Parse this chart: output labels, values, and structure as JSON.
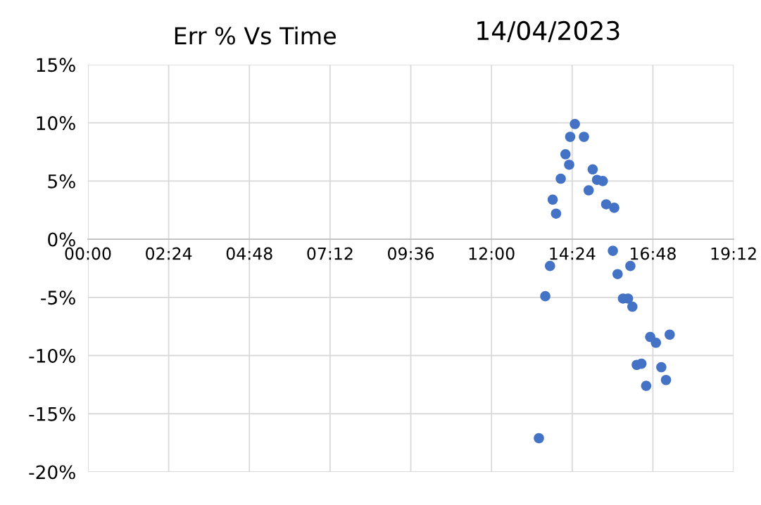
{
  "chart_data": {
    "type": "scatter",
    "title": "Err % Vs Time",
    "annotations": [
      "14/04/2023"
    ],
    "x": [
      14.48,
      14.34,
      14.75,
      14.2,
      14.31,
      14.06,
      15.01,
      15.14,
      15.31,
      14.89,
      13.82,
      13.92,
      15.41,
      15.65,
      15.61,
      13.74,
      16.13,
      15.75,
      13.6,
      15.91,
      16.06,
      16.19,
      16.72,
      16.89,
      17.3,
      16.32,
      16.46,
      17.05,
      17.19,
      16.6,
      13.41
    ],
    "values": [
      9.9,
      8.8,
      8.8,
      7.3,
      6.4,
      5.2,
      6.0,
      5.1,
      5.0,
      4.2,
      3.4,
      2.2,
      3.0,
      2.7,
      -1.0,
      -2.3,
      -2.3,
      -3.0,
      -4.9,
      -5.1,
      -5.1,
      -5.8,
      -8.4,
      -8.9,
      -8.2,
      -10.8,
      -10.7,
      -11.0,
      -12.1,
      -12.6,
      -17.1
    ],
    "color": "#4472c4",
    "marker": "circle",
    "grid": true,
    "xlim": [
      0,
      19.2
    ],
    "xticks": [
      {
        "value": 0,
        "label": "00:00"
      },
      {
        "value": 2.4,
        "label": "02:24"
      },
      {
        "value": 4.8,
        "label": "04:48"
      },
      {
        "value": 7.2,
        "label": "07:12"
      },
      {
        "value": 9.6,
        "label": "09:36"
      },
      {
        "value": 12,
        "label": "12:00"
      },
      {
        "value": 14.4,
        "label": "14:24"
      },
      {
        "value": 16.8,
        "label": "16:48"
      },
      {
        "value": 19.2,
        "label": "19:12"
      }
    ],
    "ylim": [
      -20,
      15
    ],
    "yticks": [
      {
        "value": 15,
        "label": "15%"
      },
      {
        "value": 10,
        "label": "10%"
      },
      {
        "value": 5,
        "label": "5%"
      },
      {
        "value": 0,
        "label": "0%"
      },
      {
        "value": -5,
        "label": "-5%"
      },
      {
        "value": -10,
        "label": "-10%"
      },
      {
        "value": -15,
        "label": "-15%"
      },
      {
        "value": -20,
        "label": "-20%"
      }
    ]
  }
}
